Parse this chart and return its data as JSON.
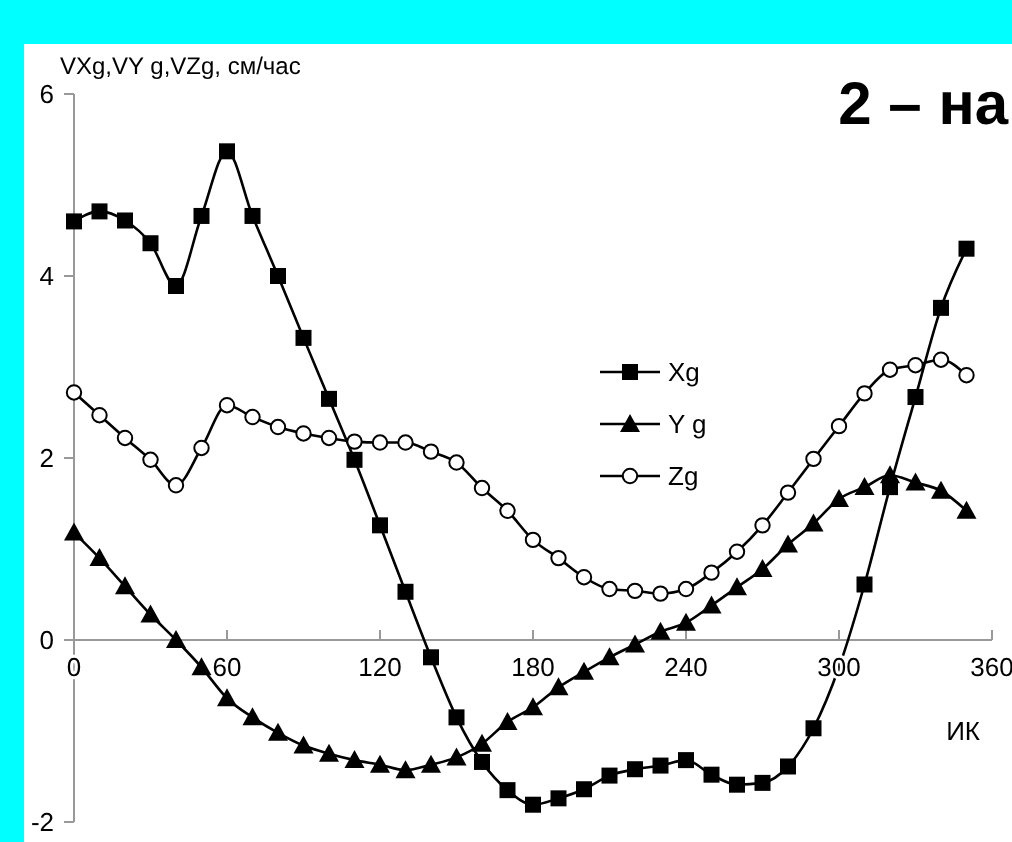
{
  "chart_data": {
    "type": "line",
    "ylabel": "VXg,VY g,VZg,  см/час",
    "xlabel": "ИК",
    "annotations": [
      "2 – на"
    ],
    "x": [
      0,
      10,
      20,
      30,
      40,
      50,
      60,
      70,
      80,
      90,
      100,
      110,
      120,
      130,
      140,
      150,
      160,
      170,
      180,
      190,
      200,
      210,
      220,
      230,
      240,
      250,
      260,
      270,
      280,
      290,
      300,
      310,
      320,
      330,
      340,
      350
    ],
    "xlim": [
      0,
      360
    ],
    "xticks": [
      0,
      60,
      120,
      180,
      240,
      300,
      360
    ],
    "ylim": [
      -2,
      6
    ],
    "yticks": [
      -2,
      0,
      2,
      4,
      6
    ],
    "grid": false,
    "legend": "top right",
    "series": [
      {
        "name": "Xg",
        "color": "#000000",
        "marker": "square",
        "values": [
          4.6,
          4.71,
          4.61,
          4.36,
          3.89,
          4.66,
          5.37,
          4.66,
          4.0,
          3.32,
          2.65,
          1.98,
          1.26,
          0.53,
          -0.19,
          -0.85,
          -1.34,
          -1.65,
          -1.81,
          -1.74,
          -1.64,
          -1.49,
          -1.42,
          -1.38,
          -1.32,
          -1.48,
          -1.59,
          -1.57,
          -1.39,
          -0.97,
          -0.3,
          0.61,
          1.68,
          2.67,
          3.65,
          4.3
        ]
      },
      {
        "name": "Y g",
        "color": "#000000",
        "marker": "triangle",
        "values": [
          1.18,
          0.9,
          0.59,
          0.28,
          0,
          -0.3,
          -0.64,
          -0.85,
          -1.02,
          -1.16,
          -1.25,
          -1.32,
          -1.37,
          -1.43,
          -1.37,
          -1.29,
          -1.14,
          -0.9,
          -0.74,
          -0.52,
          -0.35,
          -0.19,
          -0.05,
          0.09,
          0.19,
          0.38,
          0.58,
          0.78,
          1.05,
          1.28,
          1.55,
          1.68,
          1.81,
          1.73,
          1.64,
          1.42
        ]
      },
      {
        "name": "Zg",
        "color": "#000000",
        "marker": "circle",
        "values": [
          2.72,
          2.47,
          2.22,
          1.98,
          1.7,
          2.11,
          2.58,
          2.45,
          2.34,
          2.27,
          2.22,
          2.18,
          2.17,
          2.17,
          2.07,
          1.95,
          1.67,
          1.42,
          1.1,
          0.9,
          0.69,
          0.56,
          0.54,
          0.51,
          0.56,
          0.74,
          0.97,
          1.26,
          1.62,
          1.99,
          2.35,
          2.71,
          2.97,
          3.02,
          3.08,
          2.91
        ]
      }
    ]
  }
}
